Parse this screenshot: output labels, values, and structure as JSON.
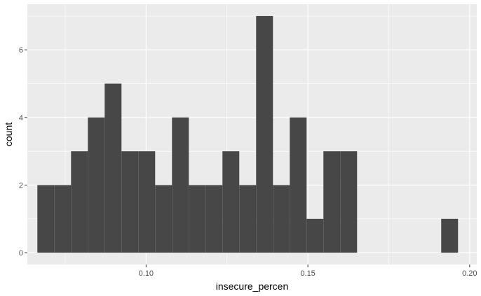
{
  "chart_data": {
    "type": "bar",
    "subtype": "histogram",
    "xlabel": "insecure_percen",
    "ylabel": "count",
    "xlim": [
      0.0633,
      0.2022
    ],
    "ylim": [
      -0.35,
      7.35
    ],
    "x_ticks": [
      {
        "value": 0.1,
        "label": "0.10"
      },
      {
        "value": 0.15,
        "label": "0.15"
      },
      {
        "value": 0.2,
        "label": "0.20"
      }
    ],
    "x_minor_ticks": [
      0.075,
      0.125,
      0.175
    ],
    "y_ticks": [
      {
        "value": 0,
        "label": "0"
      },
      {
        "value": 2,
        "label": "2"
      },
      {
        "value": 4,
        "label": "4"
      },
      {
        "value": 6,
        "label": "6"
      }
    ],
    "y_minor_ticks": [
      1,
      3,
      5,
      7
    ],
    "bin_edges": [
      0.0664,
      0.0716,
      0.0768,
      0.082,
      0.0872,
      0.0924,
      0.0976,
      0.1028,
      0.108,
      0.1132,
      0.1184,
      0.1236,
      0.1288,
      0.134,
      0.1392,
      0.1444,
      0.1496,
      0.1548,
      0.16,
      0.1652,
      0.1704,
      0.1756,
      0.1808,
      0.186,
      0.1912,
      0.1964
    ],
    "counts": [
      2,
      2,
      3,
      4,
      5,
      3,
      3,
      2,
      4,
      2,
      2,
      3,
      2,
      7,
      2,
      4,
      1,
      3,
      3,
      0,
      0,
      0,
      0,
      0,
      1
    ],
    "grid": true,
    "legend": "none",
    "colors": {
      "panel_background": "#ebebeb",
      "grid": "#ffffff",
      "bar_fill": "#474747",
      "tick_label": "#4d4d4d",
      "axis_title": "#000000",
      "tick_mark": "#333333"
    }
  }
}
